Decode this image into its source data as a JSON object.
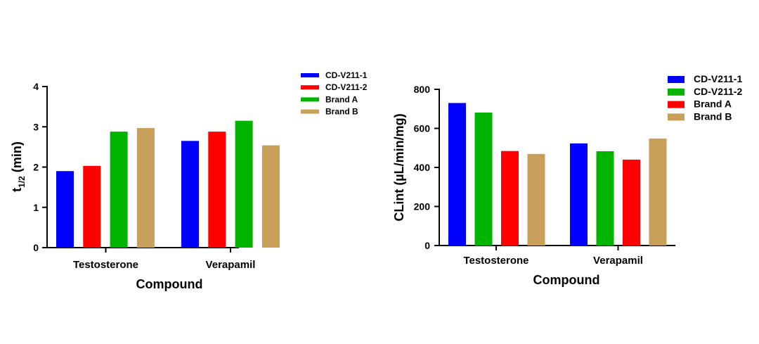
{
  "chart_data": [
    {
      "type": "bar",
      "title": "",
      "xlabel": "Compound",
      "ylabel_main": "t",
      "ylabel_sub": "1/2",
      "ylabel_rest": " (min)",
      "ylim": [
        0,
        4
      ],
      "yticks": [
        0,
        1,
        2,
        3,
        4
      ],
      "categories": [
        "Testosterone",
        "Verapamil"
      ],
      "legend_position": "top-right",
      "series": [
        {
          "name": "CD-V211-1",
          "color": "#0000ff",
          "values": [
            1.9,
            2.65
          ]
        },
        {
          "name": "CD-V211-2",
          "color": "#ff0000",
          "values": [
            2.03,
            2.88
          ]
        },
        {
          "name": "Brand A",
          "color": "#00b400",
          "values": [
            2.88,
            3.15
          ]
        },
        {
          "name": "Brand B",
          "color": "#c8a05a",
          "values": [
            2.97,
            2.54
          ]
        }
      ]
    },
    {
      "type": "bar",
      "title": "",
      "xlabel": "Compound",
      "ylabel": "CLint (µL/min/mg)",
      "ylim": [
        0,
        800
      ],
      "yticks": [
        0,
        200,
        400,
        600,
        800
      ],
      "categories": [
        "Testosterone",
        "Verapamil"
      ],
      "legend_position": "top-right",
      "series": [
        {
          "name": "CD-V211-1",
          "color": "#0000ff",
          "values": [
            730,
            523
          ]
        },
        {
          "name": "CD-V211-2",
          "color": "#00b400",
          "values": [
            681,
            483
          ]
        },
        {
          "name": "Brand A",
          "color": "#ff0000",
          "values": [
            484,
            440
          ]
        },
        {
          "name": "Brand B",
          "color": "#c8a05a",
          "values": [
            469,
            548
          ]
        }
      ]
    }
  ]
}
